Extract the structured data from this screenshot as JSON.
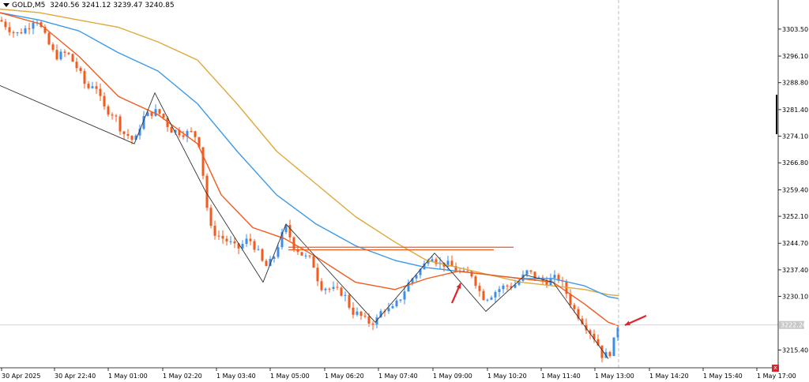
{
  "header": {
    "symbol": "GOLD,M5",
    "ohlc": "3240.56 3241.12 3239.47 3240.85"
  },
  "current_price_label": "3222.26",
  "close_marker_label": "x",
  "chart_data": {
    "type": "line",
    "title": "GOLD,M5",
    "xlabel": "",
    "ylabel": "",
    "ylim": [
      3210.5,
      3311.5
    ],
    "grid": false,
    "x_ticks": [
      "30 Apr 2025",
      "30 Apr 22:40",
      "1 May 01:00",
      "1 May 02:20",
      "1 May 03:40",
      "1 May 05:00",
      "1 May 06:20",
      "1 May 07:40",
      "1 May 09:00",
      "1 May 10:20",
      "1 May 11:40",
      "1 May 13:00",
      "1 May 14:20",
      "1 May 15:40",
      "1 May 17:00"
    ],
    "y_ticks": [
      3303.5,
      3296.1,
      3288.8,
      3281.4,
      3274.1,
      3266.8,
      3259.4,
      3252.1,
      3244.7,
      3237.4,
      3230.1,
      3215.4
    ],
    "price_path": [
      [
        0,
        3306
      ],
      [
        20,
        3302
      ],
      [
        35,
        3304
      ],
      [
        45,
        3307
      ],
      [
        60,
        3300
      ],
      [
        70,
        3296
      ],
      [
        85,
        3297
      ],
      [
        100,
        3292
      ],
      [
        110,
        3287
      ],
      [
        120,
        3289
      ],
      [
        130,
        3282
      ],
      [
        145,
        3280
      ],
      [
        155,
        3275
      ],
      [
        165,
        3274
      ],
      [
        170,
        3272
      ],
      [
        180,
        3279
      ],
      [
        195,
        3281
      ],
      [
        205,
        3280
      ],
      [
        215,
        3276
      ],
      [
        230,
        3275
      ],
      [
        245,
        3275
      ],
      [
        252,
        3272
      ],
      [
        258,
        3262
      ],
      [
        265,
        3249
      ],
      [
        275,
        3247
      ],
      [
        290,
        3245
      ],
      [
        300,
        3243
      ],
      [
        315,
        3246
      ],
      [
        325,
        3243
      ],
      [
        335,
        3238
      ],
      [
        345,
        3240
      ],
      [
        355,
        3246
      ],
      [
        362,
        3249
      ],
      [
        372,
        3244
      ],
      [
        385,
        3241
      ],
      [
        395,
        3240
      ],
      [
        405,
        3233
      ],
      [
        420,
        3232
      ],
      [
        435,
        3231
      ],
      [
        445,
        3226
      ],
      [
        455,
        3225
      ],
      [
        465,
        3223
      ],
      [
        475,
        3223
      ],
      [
        485,
        3227
      ],
      [
        495,
        3226
      ],
      [
        505,
        3229
      ],
      [
        515,
        3233
      ],
      [
        525,
        3236
      ],
      [
        535,
        3238
      ],
      [
        545,
        3242
      ],
      [
        555,
        3239
      ],
      [
        565,
        3239
      ],
      [
        575,
        3238
      ],
      [
        585,
        3236
      ],
      [
        595,
        3237
      ],
      [
        602,
        3234
      ],
      [
        610,
        3230
      ],
      [
        618,
        3230
      ],
      [
        630,
        3232
      ],
      [
        640,
        3233
      ],
      [
        650,
        3233
      ],
      [
        660,
        3235
      ],
      [
        668,
        3237
      ],
      [
        680,
        3235
      ],
      [
        690,
        3234
      ],
      [
        700,
        3235
      ],
      [
        708,
        3235
      ],
      [
        715,
        3232
      ],
      [
        725,
        3227
      ],
      [
        735,
        3224
      ],
      [
        745,
        3221
      ],
      [
        755,
        3218
      ],
      [
        762,
        3214
      ],
      [
        770,
        3214
      ],
      [
        775,
        3216
      ],
      [
        783,
        3223
      ]
    ],
    "zigzag": [
      [
        0,
        3288
      ],
      [
        170,
        3272
      ],
      [
        196,
        3286
      ],
      [
        260,
        3259
      ],
      [
        333,
        3234
      ],
      [
        362,
        3250
      ],
      [
        475,
        3223
      ],
      [
        550,
        3242
      ],
      [
        575,
        3236
      ],
      [
        615,
        3226
      ],
      [
        665,
        3236
      ],
      [
        700,
        3234
      ],
      [
        770,
        3213
      ]
    ],
    "series": [],
    "ma_fast": [
      [
        0,
        3308
      ],
      [
        50,
        3305
      ],
      [
        100,
        3296
      ],
      [
        150,
        3285
      ],
      [
        200,
        3280
      ],
      [
        250,
        3272
      ],
      [
        280,
        3258
      ],
      [
        320,
        3249
      ],
      [
        360,
        3246
      ],
      [
        400,
        3241
      ],
      [
        450,
        3234
      ],
      [
        500,
        3232
      ],
      [
        540,
        3235
      ],
      [
        580,
        3237
      ],
      [
        620,
        3236
      ],
      [
        660,
        3235
      ],
      [
        700,
        3234
      ],
      [
        740,
        3228
      ],
      [
        770,
        3223
      ],
      [
        783,
        3222
      ]
    ],
    "ma_mid": [
      [
        0,
        3308
      ],
      [
        50,
        3306
      ],
      [
        100,
        3303
      ],
      [
        150,
        3297
      ],
      [
        200,
        3292
      ],
      [
        250,
        3283
      ],
      [
        300,
        3270
      ],
      [
        350,
        3258
      ],
      [
        400,
        3250
      ],
      [
        450,
        3244
      ],
      [
        500,
        3240
      ],
      [
        540,
        3238
      ],
      [
        580,
        3237
      ],
      [
        620,
        3236
      ],
      [
        660,
        3235
      ],
      [
        700,
        3235
      ],
      [
        740,
        3233
      ],
      [
        770,
        3230
      ],
      [
        783,
        3229.5
      ]
    ],
    "ma_slow": [
      [
        0,
        3309
      ],
      [
        50,
        3308
      ],
      [
        100,
        3306
      ],
      [
        150,
        3304
      ],
      [
        200,
        3300
      ],
      [
        250,
        3295
      ],
      [
        300,
        3283
      ],
      [
        350,
        3270
      ],
      [
        400,
        3261
      ],
      [
        450,
        3252
      ],
      [
        500,
        3245
      ],
      [
        540,
        3240
      ],
      [
        580,
        3238
      ],
      [
        620,
        3236
      ],
      [
        660,
        3234
      ],
      [
        700,
        3233
      ],
      [
        740,
        3232
      ],
      [
        770,
        3230.6
      ],
      [
        783,
        3230.3
      ]
    ],
    "resistance_levels": [
      {
        "x_from": 365,
        "x_to": 650,
        "value": 3243.6
      },
      {
        "x_from": 365,
        "x_to": 625,
        "value": 3242.9
      }
    ],
    "current_price": 3222.26,
    "colors": {
      "bull": "#3d8ee8",
      "bear": "#f35a1e",
      "ma_fast": "#f35a1e",
      "ma_mid": "#3b9ae8",
      "ma_slow": "#e0a83a",
      "zigzag": "#333333",
      "level": "#f35a1e",
      "arrow": "#e3232b"
    }
  }
}
